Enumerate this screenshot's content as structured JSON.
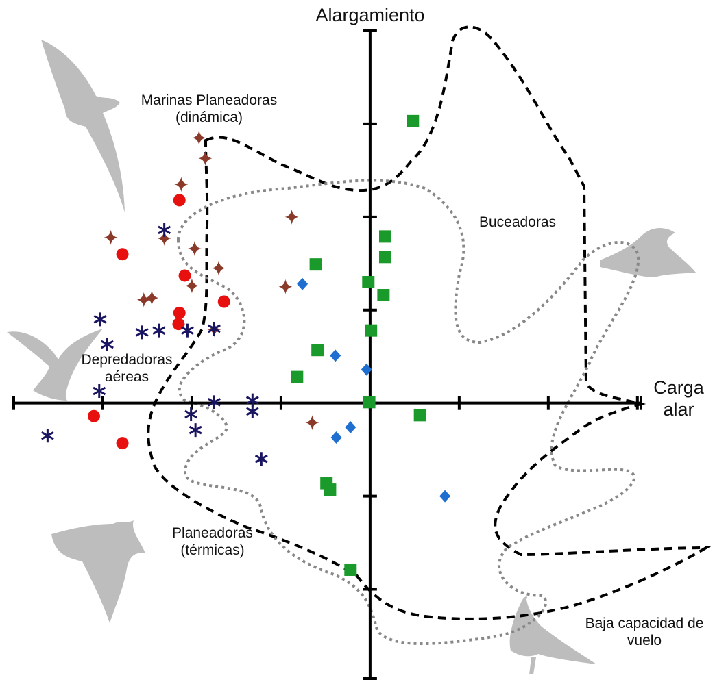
{
  "chart_data": {
    "type": "scatter",
    "y_label": "Alargamiento",
    "x_label": "Carga alar",
    "xlim": [
      -4.0,
      3.04
    ],
    "ylim": [
      -2.96,
      4.0
    ],
    "xticks": [
      -3,
      -2,
      -1,
      0,
      1,
      2,
      3
    ],
    "yticks": [
      -2,
      -1,
      0,
      1,
      2,
      3
    ],
    "grid": false,
    "annotations": [
      {
        "text": "Marinas Planeadoras (dinámica)"
      },
      {
        "text": "Buceadoras"
      },
      {
        "text": "Depredadoras aéreas"
      },
      {
        "text": "Planeadoras (térmicas)"
      },
      {
        "text": "Baja capacidad de vuelo"
      }
    ],
    "series": [
      {
        "marker": "square",
        "color": "#1a9a2a",
        "x": [
          0.48,
          0.17,
          0.17,
          -0.61,
          -0.02,
          0.15,
          0.01,
          -0.59,
          -0.82,
          -0.01,
          0.56,
          -0.49,
          -0.45,
          -0.22
        ],
        "values": [
          3.03,
          1.79,
          1.57,
          1.49,
          1.3,
          1.16,
          0.78,
          0.57,
          0.28,
          0.01,
          -0.13,
          -0.86,
          -0.93,
          -1.79
        ]
      },
      {
        "marker": "diamond",
        "color": "#1e6fd0",
        "x": [
          -0.76,
          -0.39,
          -0.04,
          -0.22,
          -0.38,
          0.84
        ],
        "values": [
          1.28,
          0.51,
          0.36,
          -0.26,
          -0.37,
          -1.0
        ]
      },
      {
        "marker": "circle",
        "color": "#e8100e",
        "x": [
          -2.14,
          -2.78,
          -2.08,
          -1.64,
          -2.14,
          -2.15,
          -3.1,
          -2.78
        ],
        "values": [
          2.18,
          1.6,
          1.37,
          1.09,
          0.97,
          0.85,
          -0.14,
          -0.43
        ]
      },
      {
        "marker": "star",
        "color": "#8b3a2a",
        "x": [
          -1.92,
          -1.85,
          -2.12,
          -0.88,
          -2.91,
          -2.31,
          -1.97,
          -1.7,
          -2.0,
          -0.95,
          -2.54,
          -2.45,
          -1.75,
          -0.65
        ],
        "values": [
          2.85,
          2.63,
          2.35,
          2.0,
          1.78,
          1.77,
          1.66,
          1.45,
          1.26,
          1.25,
          1.11,
          1.13,
          0.79,
          -0.21
        ]
      },
      {
        "marker": "asterisk",
        "color": "#1a1560",
        "x": [
          -2.31,
          -3.03,
          -2.95,
          -2.56,
          -2.37,
          -2.05,
          -1.75,
          -3.04,
          -1.32,
          -1.75,
          -1.32,
          -2.01,
          -1.96,
          -3.62,
          -1.22
        ],
        "values": [
          1.86,
          0.9,
          0.63,
          0.76,
          0.78,
          0.78,
          0.8,
          0.13,
          0.03,
          0.01,
          -0.09,
          -0.12,
          -0.29,
          -0.35,
          -0.6
        ]
      }
    ]
  }
}
